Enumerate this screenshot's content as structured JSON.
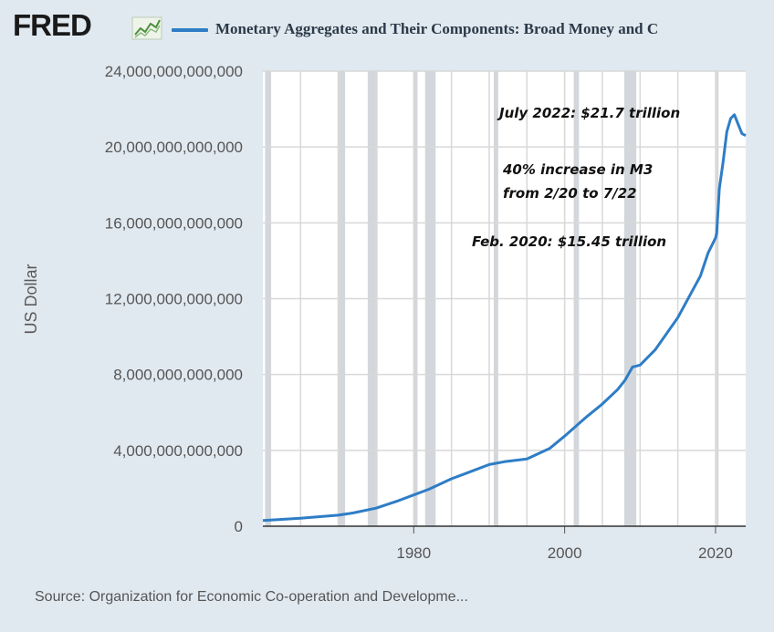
{
  "header": {
    "logo_text": "FRED",
    "logo_icon": "trend-line-icon",
    "series_title": "Monetary Aggregates and Their Components: Broad Money and C",
    "series_color": "#2e7dc6"
  },
  "footer": {
    "source": "Source: Organization for Economic Co-operation and Developme..."
  },
  "annotations": {
    "peak": "July 2022: $21.7 trillion",
    "increase_line1": "40% increase in M3",
    "increase_line2": "from 2/20 to 7/22",
    "feb2020": "Feb. 2020: $15.45 trillion"
  },
  "chart_data": {
    "type": "line",
    "title": "",
    "xlabel": "",
    "ylabel": "US Dollar",
    "xlim": [
      1960,
      2024
    ],
    "ylim": [
      0,
      24000000000000
    ],
    "x_ticks": [
      1980,
      2000,
      2020
    ],
    "y_ticks": [
      0,
      4000000000000,
      8000000000000,
      12000000000000,
      16000000000000,
      20000000000000,
      24000000000000
    ],
    "y_tick_labels": [
      "0",
      "4,000,000,000,000",
      "8,000,000,000,000",
      "12,000,000,000,000",
      "16,000,000,000,000",
      "20,000,000,000,000",
      "24,000,000,000,000"
    ],
    "x_tick_labels": [
      "1980",
      "2000",
      "2020"
    ],
    "recessions": [
      [
        1960.3,
        1961.1
      ],
      [
        1969.9,
        1970.9
      ],
      [
        1973.9,
        1975.2
      ],
      [
        1980.0,
        1980.5
      ],
      [
        1981.5,
        1982.9
      ],
      [
        1990.6,
        1991.2
      ],
      [
        2001.2,
        2001.9
      ],
      [
        2007.9,
        2009.5
      ],
      [
        2020.1,
        2020.4
      ]
    ],
    "series": [
      {
        "color": "#2e7dc6",
        "x": [
          1960,
          1965,
          1970,
          1972,
          1975,
          1978,
          1980,
          1982,
          1985,
          1988,
          1990,
          1992,
          1995,
          1998,
          2000,
          2003,
          2005,
          2007,
          2008,
          2009,
          2010,
          2012,
          2015,
          2018,
          2019,
          2020.0,
          2020.15,
          2020.5,
          2021,
          2021.5,
          2022.0,
          2022.5,
          2023.0,
          2023.5,
          2024
        ],
        "values": [
          300000000000,
          420000000000,
          580000000000,
          700000000000,
          950000000000,
          1350000000000,
          1650000000000,
          1950000000000,
          2500000000000,
          2950000000000,
          3250000000000,
          3400000000000,
          3550000000000,
          4100000000000,
          4750000000000,
          5800000000000,
          6450000000000,
          7200000000000,
          7700000000000,
          8400000000000,
          8500000000000,
          9300000000000,
          11000000000000,
          13200000000000,
          14400000000000,
          15200000000000,
          15450000000000,
          17800000000000,
          19200000000000,
          20800000000000,
          21500000000000,
          21700000000000,
          21200000000000,
          20700000000000,
          20600000000000
        ]
      }
    ],
    "grid": true
  }
}
